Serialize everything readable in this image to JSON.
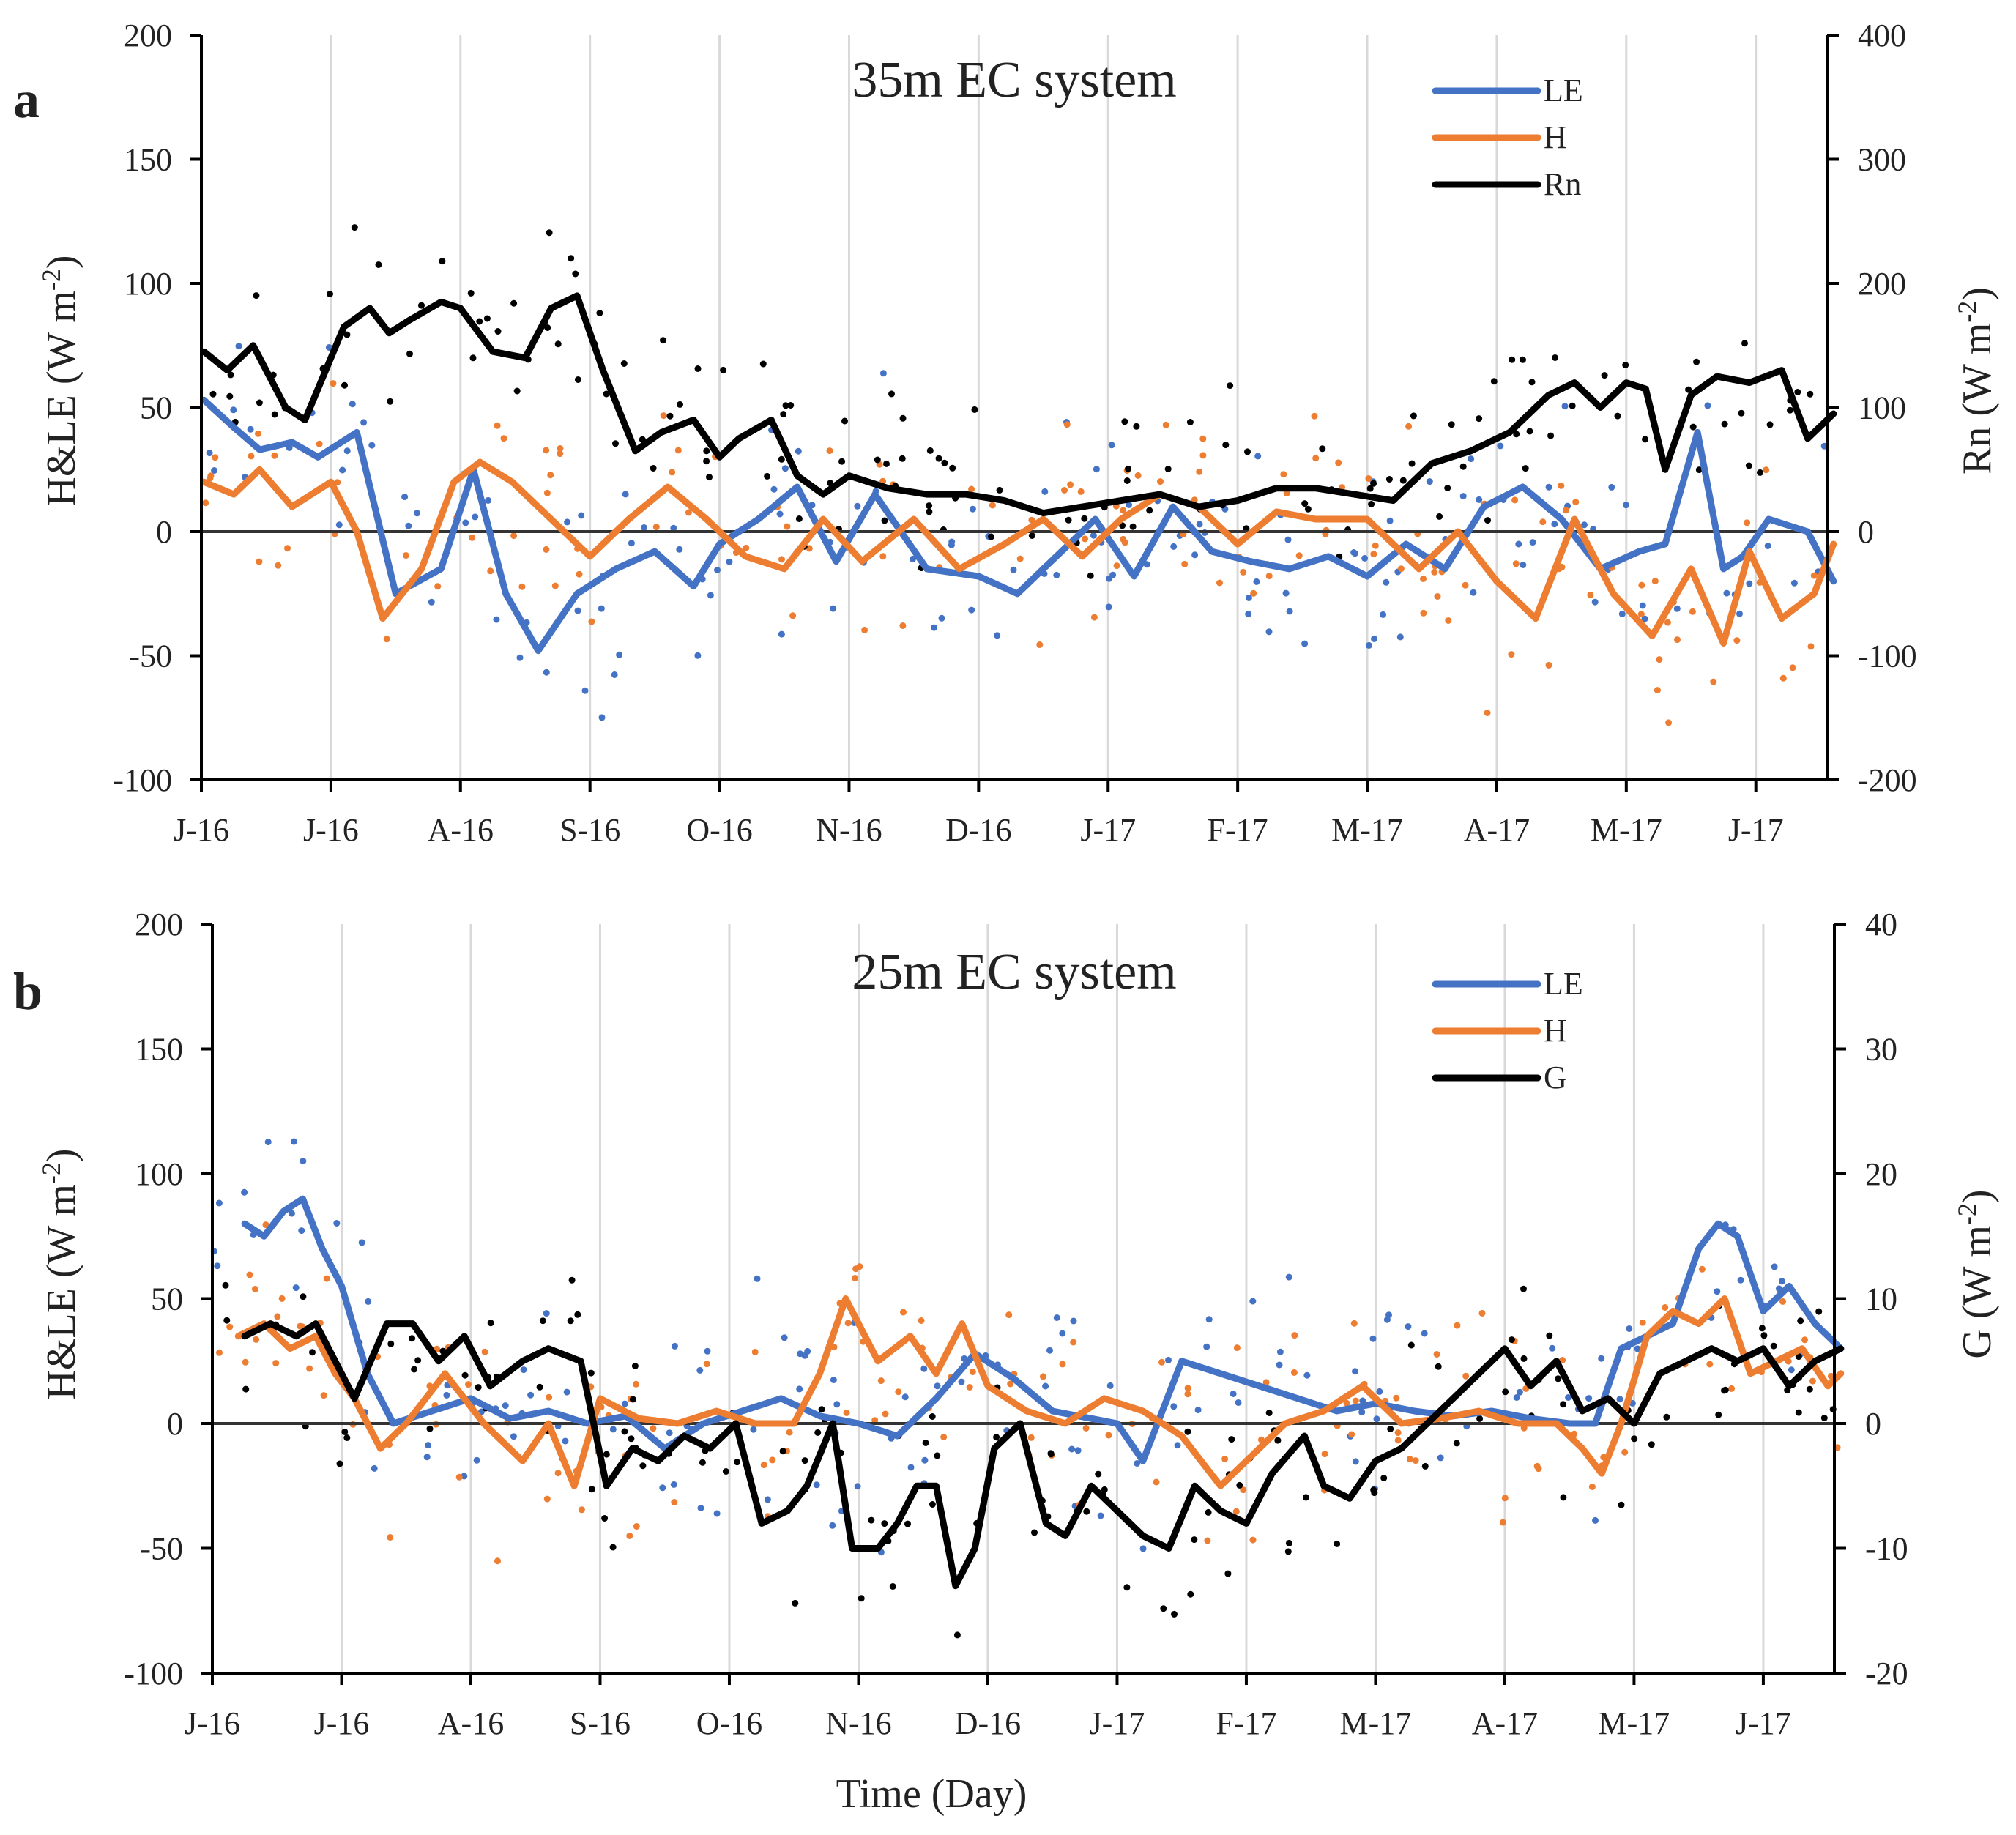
{
  "chart_data": [
    {
      "panel": "a",
      "type": "line",
      "title": "35m EC system",
      "xlabel": "",
      "ylabel": "H&LE (W m-2)",
      "ylabel_base": "H&LE (W m",
      "ylabel_sup": "-2",
      "ylabel_close": ")",
      "y2label": "Rn (W m-2)",
      "y2label_base": "Rn (W m",
      "y2label_sup": "-2",
      "y2label_close": ")",
      "ylim": [
        -100,
        200
      ],
      "y2lim": [
        -200,
        400
      ],
      "yticks": [
        "200",
        "150",
        "100",
        "50",
        "0",
        "-50",
        "-100"
      ],
      "y2ticks": [
        "400",
        "300",
        "200",
        "100",
        "0",
        "-100",
        "-200"
      ],
      "x_categories": [
        "J-16",
        "J-16",
        "A-16",
        "S-16",
        "O-16",
        "N-16",
        "D-16",
        "J-17",
        "F-17",
        "M-17",
        "A-17",
        "M-17",
        "J-17"
      ],
      "legend": [
        "LE",
        "H",
        "Rn"
      ],
      "legend_position": "top-right",
      "series": [
        {
          "name": "LE",
          "axis": "left",
          "color": "#4472C4",
          "x": [
            0.02,
            0.25,
            0.45,
            0.7,
            0.9,
            1.2,
            1.5,
            1.85,
            2.1,
            2.35,
            2.6,
            2.9,
            3.2,
            3.5,
            3.8,
            4.0,
            4.3,
            4.6,
            4.9,
            5.2,
            5.6,
            6.0,
            6.3,
            6.6,
            6.9,
            7.2,
            7.5,
            7.8,
            8.1,
            8.4,
            8.7,
            9.0,
            9.3,
            9.6,
            9.9,
            10.2,
            10.5,
            10.8,
            11.1,
            11.3,
            11.55,
            11.75,
            11.9,
            12.1,
            12.4,
            12.6
          ],
          "y": [
            53,
            42,
            33,
            36,
            30,
            40,
            -25,
            -15,
            25,
            -25,
            -48,
            -25,
            -15,
            -8,
            -22,
            -5,
            5,
            18,
            -12,
            15,
            -15,
            -18,
            -25,
            -10,
            5,
            -18,
            10,
            -8,
            -12,
            -15,
            -10,
            -18,
            -5,
            -15,
            10,
            18,
            5,
            -15,
            -8,
            -5,
            40,
            -15,
            -10,
            5,
            0,
            -20
          ]
        },
        {
          "name": "H",
          "axis": "left",
          "color": "#ED7D31",
          "x": [
            0.02,
            0.25,
            0.45,
            0.7,
            1.0,
            1.2,
            1.4,
            1.7,
            1.95,
            2.15,
            2.4,
            2.7,
            3.0,
            3.3,
            3.6,
            3.9,
            4.2,
            4.5,
            4.8,
            5.1,
            5.5,
            5.85,
            6.2,
            6.5,
            6.8,
            7.1,
            7.4,
            7.7,
            8.0,
            8.3,
            8.6,
            9.0,
            9.4,
            9.7,
            10.0,
            10.3,
            10.6,
            10.9,
            11.2,
            11.5,
            11.75,
            11.95,
            12.2,
            12.45,
            12.6
          ],
          "y": [
            20,
            15,
            25,
            10,
            20,
            0,
            -35,
            -15,
            20,
            28,
            20,
            5,
            -10,
            5,
            18,
            5,
            -10,
            -15,
            5,
            -12,
            5,
            -15,
            -5,
            5,
            -10,
            5,
            15,
            10,
            -5,
            8,
            5,
            5,
            -15,
            0,
            -20,
            -35,
            5,
            -25,
            -42,
            -15,
            -45,
            -8,
            -35,
            -25,
            -5
          ]
        },
        {
          "name": "Rn",
          "axis": "right",
          "color": "#000000",
          "x": [
            0.02,
            0.2,
            0.4,
            0.65,
            0.8,
            1.1,
            1.3,
            1.45,
            1.6,
            1.85,
            2.0,
            2.25,
            2.5,
            2.7,
            2.9,
            3.1,
            3.35,
            3.55,
            3.8,
            4.0,
            4.15,
            4.4,
            4.6,
            4.8,
            5.0,
            5.3,
            5.6,
            5.9,
            6.2,
            6.5,
            6.8,
            7.1,
            7.4,
            7.7,
            8.0,
            8.3,
            8.6,
            8.9,
            9.2,
            9.5,
            9.8,
            10.1,
            10.4,
            10.6,
            10.8,
            11.0,
            11.15,
            11.3,
            11.5,
            11.7,
            11.95,
            12.2,
            12.4,
            12.6
          ],
          "y": [
            145,
            130,
            150,
            100,
            90,
            165,
            180,
            160,
            170,
            185,
            180,
            145,
            140,
            180,
            190,
            130,
            65,
            80,
            90,
            60,
            75,
            90,
            45,
            30,
            45,
            35,
            30,
            30,
            25,
            15,
            20,
            25,
            30,
            20,
            25,
            35,
            35,
            30,
            25,
            55,
            65,
            80,
            110,
            120,
            100,
            120,
            115,
            50,
            110,
            125,
            120,
            130,
            75,
            95
          ]
        }
      ]
    },
    {
      "panel": "b",
      "type": "line",
      "title": "25m EC system",
      "xlabel": "Time (Day)",
      "ylabel": "H&LE (W m-2)",
      "ylabel_base": "H&LE (W m",
      "ylabel_sup": "-2",
      "ylabel_close": ")",
      "y2label": "G (W m-2)",
      "y2label_base": "G (W m",
      "y2label_sup": "-2",
      "y2label_close": ")",
      "ylim": [
        -100,
        200
      ],
      "y2lim": [
        -20,
        40
      ],
      "yticks": [
        "200",
        "150",
        "100",
        "50",
        "0",
        "-50",
        "-100"
      ],
      "y2ticks": [
        "40",
        "30",
        "20",
        "10",
        "0",
        "-10",
        "-20"
      ],
      "x_categories": [
        "J-16",
        "J-16",
        "A-16",
        "S-16",
        "O-16",
        "N-16",
        "D-16",
        "J-17",
        "F-17",
        "M-17",
        "A-17",
        "M-17",
        "J-17"
      ],
      "legend": [
        "LE",
        "H",
        "G"
      ],
      "legend_position": "top-right",
      "series": [
        {
          "name": "LE",
          "axis": "left",
          "color": "#4472C4",
          "x": [
            0.25,
            0.4,
            0.55,
            0.7,
            0.85,
            1.0,
            1.2,
            1.4,
            1.7,
            2.0,
            2.3,
            2.6,
            2.9,
            3.2,
            3.5,
            3.8,
            4.1,
            4.4,
            4.7,
            5.0,
            5.3,
            5.6,
            5.9,
            6.2,
            6.5,
            6.8,
            7.0,
            7.2,
            7.5,
            7.8,
            8.1,
            8.4,
            8.7,
            9.0,
            9.3,
            9.6,
            9.9,
            10.2,
            10.5,
            10.7,
            10.9,
            11.1,
            11.3,
            11.5,
            11.65,
            11.8,
            12.0,
            12.2,
            12.4,
            12.6
          ],
          "y": [
            80,
            75,
            85,
            90,
            70,
            55,
            20,
            0,
            5,
            10,
            2,
            5,
            0,
            3,
            -10,
            0,
            5,
            10,
            3,
            0,
            -5,
            10,
            28,
            18,
            5,
            2,
            0,
            -15,
            25,
            20,
            15,
            10,
            5,
            8,
            5,
            3,
            5,
            2,
            0,
            0,
            30,
            35,
            40,
            70,
            80,
            75,
            45,
            55,
            40,
            30
          ]
        },
        {
          "name": "H",
          "axis": "left",
          "color": "#ED7D31",
          "x": [
            0.2,
            0.4,
            0.6,
            0.8,
            0.95,
            1.1,
            1.3,
            1.5,
            1.8,
            2.1,
            2.4,
            2.6,
            2.8,
            3.0,
            3.3,
            3.6,
            3.9,
            4.2,
            4.5,
            4.7,
            4.9,
            5.15,
            5.4,
            5.6,
            5.8,
            6.0,
            6.3,
            6.6,
            6.9,
            7.2,
            7.5,
            7.8,
            8.0,
            8.3,
            8.6,
            8.9,
            9.2,
            9.5,
            9.8,
            10.1,
            10.4,
            10.6,
            10.75,
            10.9,
            11.1,
            11.3,
            11.5,
            11.7,
            11.9,
            12.1,
            12.3,
            12.5,
            12.6
          ],
          "y": [
            35,
            40,
            30,
            35,
            20,
            10,
            -10,
            0,
            20,
            0,
            -15,
            0,
            -25,
            10,
            2,
            0,
            5,
            0,
            0,
            20,
            50,
            25,
            35,
            20,
            40,
            15,
            5,
            0,
            10,
            5,
            -5,
            -25,
            -15,
            0,
            5,
            15,
            0,
            2,
            5,
            0,
            0,
            -10,
            -20,
            0,
            35,
            45,
            40,
            50,
            20,
            25,
            30,
            15,
            20
          ]
        },
        {
          "name": "G",
          "axis": "right",
          "color": "#000000",
          "x": [
            0.25,
            0.45,
            0.65,
            0.8,
            0.95,
            1.1,
            1.35,
            1.55,
            1.75,
            1.95,
            2.15,
            2.4,
            2.6,
            2.85,
            3.05,
            3.25,
            3.45,
            3.65,
            3.85,
            4.05,
            4.25,
            4.45,
            4.6,
            4.8,
            4.95,
            5.15,
            5.3,
            5.45,
            5.6,
            5.75,
            5.9,
            6.05,
            6.25,
            6.45,
            6.6,
            6.8,
            7.0,
            7.2,
            7.4,
            7.6,
            7.8,
            8.0,
            8.2,
            8.45,
            8.6,
            8.8,
            9.0,
            9.2,
            9.4,
            9.6,
            9.8,
            10.0,
            10.2,
            10.4,
            10.6,
            10.8,
            11.0,
            11.2,
            11.4,
            11.6,
            11.8,
            12.0,
            12.2,
            12.4,
            12.6
          ],
          "y": [
            7,
            8,
            7,
            8,
            5,
            2,
            8,
            8,
            5,
            7,
            3,
            5,
            6,
            5,
            -5,
            -2,
            -3,
            -1,
            -2,
            0,
            -8,
            -7,
            -5,
            0,
            -10,
            -10,
            -8,
            -5,
            -5,
            -13,
            -10,
            -2,
            0,
            -8,
            -9,
            -5,
            -7,
            -9,
            -10,
            -5,
            -7,
            -8,
            -4,
            -1,
            -5,
            -6,
            -3,
            -2,
            0,
            2,
            4,
            6,
            3,
            5,
            1,
            2,
            0,
            4,
            5,
            6,
            5,
            6,
            3,
            5,
            6
          ]
        }
      ]
    }
  ]
}
